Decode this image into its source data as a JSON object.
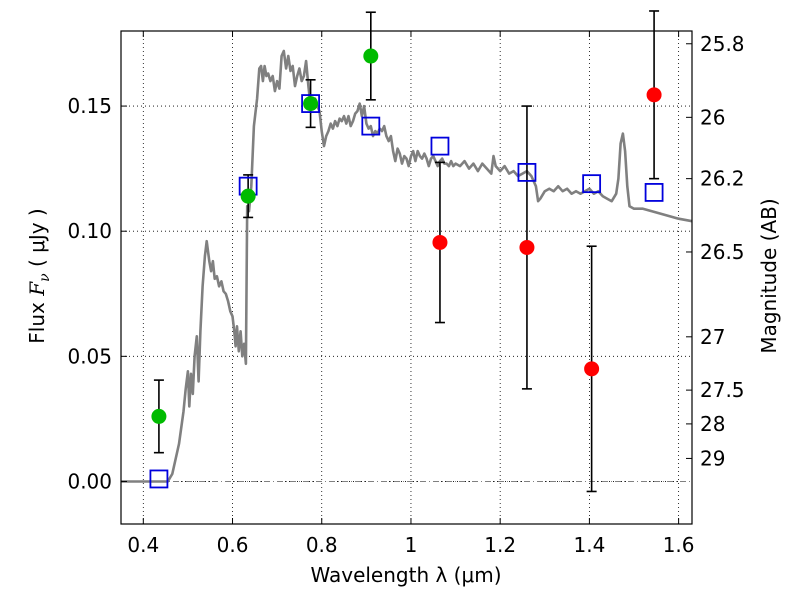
{
  "chart_data": {
    "type": "scatter",
    "xlabel": "Wavelength  λ (μm)",
    "ylabel_left": {
      "prefix": "Flux  ",
      "symbol": "F",
      "sub": "ν",
      "unit": "  ( μJy )"
    },
    "ylabel_right": "Magnitude (AB)",
    "xlim": [
      0.35,
      1.63
    ],
    "ylim": [
      -0.017,
      0.18
    ],
    "grid": true,
    "x_ticks": [
      0.4,
      0.6,
      0.8,
      1.0,
      1.2,
      1.4,
      1.6
    ],
    "x_tick_labels": [
      "0.4",
      "0.6",
      "0.8",
      "1",
      "1.2",
      "1.4",
      "1.6"
    ],
    "y_ticks": [
      0.0,
      0.05,
      0.1,
      0.15
    ],
    "y_tick_labels": [
      "0.00",
      "0.05",
      "0.10",
      "0.15"
    ],
    "right_ticks": [
      {
        "label": "25.8",
        "flux": 0.1749
      },
      {
        "label": "26",
        "flux": 0.1455
      },
      {
        "label": "26.2",
        "flux": 0.121
      },
      {
        "label": "26.5",
        "flux": 0.0917
      },
      {
        "label": "27",
        "flux": 0.0578
      },
      {
        "label": "27.5",
        "flux": 0.0365
      },
      {
        "label": "28",
        "flux": 0.023
      },
      {
        "label": "29",
        "flux": 0.0092
      }
    ],
    "series": [
      {
        "kind": "line",
        "color": "#808080",
        "points": [
          [
            0.35,
            0.0
          ],
          [
            0.4,
            0.0
          ],
          [
            0.44,
            0.0
          ],
          [
            0.455,
            0.0
          ],
          [
            0.465,
            0.003
          ],
          [
            0.48,
            0.015
          ],
          [
            0.49,
            0.028
          ],
          [
            0.495,
            0.037
          ],
          [
            0.5,
            0.044
          ],
          [
            0.503,
            0.03
          ],
          [
            0.507,
            0.043
          ],
          [
            0.511,
            0.035
          ],
          [
            0.515,
            0.05
          ],
          [
            0.52,
            0.058
          ],
          [
            0.524,
            0.04
          ],
          [
            0.528,
            0.06
          ],
          [
            0.533,
            0.078
          ],
          [
            0.538,
            0.09
          ],
          [
            0.542,
            0.096
          ],
          [
            0.548,
            0.088
          ],
          [
            0.552,
            0.084
          ],
          [
            0.556,
            0.088
          ],
          [
            0.56,
            0.081
          ],
          [
            0.565,
            0.082
          ],
          [
            0.57,
            0.078
          ],
          [
            0.575,
            0.08
          ],
          [
            0.58,
            0.076
          ],
          [
            0.585,
            0.075
          ],
          [
            0.59,
            0.072
          ],
          [
            0.595,
            0.068
          ],
          [
            0.6,
            0.066
          ],
          [
            0.604,
            0.06
          ],
          [
            0.607,
            0.054
          ],
          [
            0.61,
            0.062
          ],
          [
            0.614,
            0.052
          ],
          [
            0.618,
            0.06
          ],
          [
            0.622,
            0.05
          ],
          [
            0.626,
            0.055
          ],
          [
            0.63,
            0.047
          ],
          [
            0.633,
            0.11
          ],
          [
            0.637,
            0.108
          ],
          [
            0.642,
            0.118
          ],
          [
            0.648,
            0.142
          ],
          [
            0.655,
            0.153
          ],
          [
            0.66,
            0.165
          ],
          [
            0.664,
            0.166
          ],
          [
            0.668,
            0.16
          ],
          [
            0.672,
            0.166
          ],
          [
            0.676,
            0.162
          ],
          [
            0.68,
            0.163
          ],
          [
            0.685,
            0.16
          ],
          [
            0.69,
            0.162
          ],
          [
            0.695,
            0.156
          ],
          [
            0.7,
            0.16
          ],
          [
            0.705,
            0.157
          ],
          [
            0.71,
            0.17
          ],
          [
            0.715,
            0.172
          ],
          [
            0.72,
            0.165
          ],
          [
            0.725,
            0.17
          ],
          [
            0.73,
            0.164
          ],
          [
            0.735,
            0.166
          ],
          [
            0.74,
            0.158
          ],
          [
            0.745,
            0.162
          ],
          [
            0.75,
            0.165
          ],
          [
            0.755,
            0.16
          ],
          [
            0.76,
            0.162
          ],
          [
            0.765,
            0.168
          ],
          [
            0.77,
            0.158
          ],
          [
            0.775,
            0.15
          ],
          [
            0.78,
            0.152
          ],
          [
            0.785,
            0.153
          ],
          [
            0.79,
            0.15
          ],
          [
            0.795,
            0.148
          ],
          [
            0.8,
            0.14
          ],
          [
            0.805,
            0.134
          ],
          [
            0.81,
            0.138
          ],
          [
            0.815,
            0.14
          ],
          [
            0.82,
            0.143
          ],
          [
            0.825,
            0.141
          ],
          [
            0.83,
            0.144
          ],
          [
            0.835,
            0.142
          ],
          [
            0.84,
            0.145
          ],
          [
            0.845,
            0.144
          ],
          [
            0.85,
            0.146
          ],
          [
            0.855,
            0.143
          ],
          [
            0.86,
            0.146
          ],
          [
            0.865,
            0.142
          ],
          [
            0.87,
            0.144
          ],
          [
            0.875,
            0.147
          ],
          [
            0.88,
            0.148
          ],
          [
            0.885,
            0.151
          ],
          [
            0.89,
            0.146
          ],
          [
            0.895,
            0.15
          ],
          [
            0.9,
            0.143
          ],
          [
            0.905,
            0.141
          ],
          [
            0.91,
            0.142
          ],
          [
            0.915,
            0.138
          ],
          [
            0.92,
            0.14
          ],
          [
            0.925,
            0.139
          ],
          [
            0.93,
            0.141
          ],
          [
            0.935,
            0.14
          ],
          [
            0.94,
            0.142
          ],
          [
            0.945,
            0.138
          ],
          [
            0.95,
            0.136
          ],
          [
            0.955,
            0.138
          ],
          [
            0.96,
            0.132
          ],
          [
            0.965,
            0.128
          ],
          [
            0.97,
            0.133
          ],
          [
            0.975,
            0.131
          ],
          [
            0.98,
            0.127
          ],
          [
            0.985,
            0.13
          ],
          [
            0.99,
            0.129
          ],
          [
            0.995,
            0.126
          ],
          [
            1.0,
            0.13
          ],
          [
            1.005,
            0.132
          ],
          [
            1.01,
            0.128
          ],
          [
            1.015,
            0.132
          ],
          [
            1.02,
            0.13
          ],
          [
            1.025,
            0.129
          ],
          [
            1.03,
            0.131
          ],
          [
            1.035,
            0.129
          ],
          [
            1.04,
            0.126
          ],
          [
            1.045,
            0.129
          ],
          [
            1.05,
            0.13
          ],
          [
            1.055,
            0.128
          ],
          [
            1.06,
            0.126
          ],
          [
            1.065,
            0.128
          ],
          [
            1.07,
            0.129
          ],
          [
            1.075,
            0.127
          ],
          [
            1.08,
            0.127
          ],
          [
            1.085,
            0.126
          ],
          [
            1.09,
            0.128
          ],
          [
            1.095,
            0.126
          ],
          [
            1.1,
            0.127
          ],
          [
            1.11,
            0.126
          ],
          [
            1.12,
            0.128
          ],
          [
            1.13,
            0.125
          ],
          [
            1.14,
            0.127
          ],
          [
            1.15,
            0.124
          ],
          [
            1.16,
            0.127
          ],
          [
            1.17,
            0.125
          ],
          [
            1.18,
            0.123
          ],
          [
            1.185,
            0.13
          ],
          [
            1.19,
            0.126
          ],
          [
            1.2,
            0.124
          ],
          [
            1.21,
            0.126
          ],
          [
            1.22,
            0.123
          ],
          [
            1.23,
            0.124
          ],
          [
            1.24,
            0.122
          ],
          [
            1.25,
            0.123
          ],
          [
            1.26,
            0.124
          ],
          [
            1.27,
            0.122
          ],
          [
            1.28,
            0.118
          ],
          [
            1.285,
            0.112
          ],
          [
            1.29,
            0.113
          ],
          [
            1.3,
            0.116
          ],
          [
            1.31,
            0.117
          ],
          [
            1.32,
            0.116
          ],
          [
            1.33,
            0.118
          ],
          [
            1.34,
            0.116
          ],
          [
            1.35,
            0.117
          ],
          [
            1.36,
            0.115
          ],
          [
            1.37,
            0.116
          ],
          [
            1.38,
            0.115
          ],
          [
            1.39,
            0.116
          ],
          [
            1.4,
            0.117
          ],
          [
            1.41,
            0.115
          ],
          [
            1.42,
            0.116
          ],
          [
            1.43,
            0.114
          ],
          [
            1.44,
            0.113
          ],
          [
            1.45,
            0.112
          ],
          [
            1.46,
            0.115
          ],
          [
            1.465,
            0.121
          ],
          [
            1.47,
            0.135
          ],
          [
            1.475,
            0.139
          ],
          [
            1.48,
            0.132
          ],
          [
            1.485,
            0.118
          ],
          [
            1.49,
            0.11
          ],
          [
            1.5,
            0.109
          ],
          [
            1.52,
            0.109
          ],
          [
            1.54,
            0.108
          ],
          [
            1.56,
            0.107
          ],
          [
            1.58,
            0.106
          ],
          [
            1.6,
            0.105
          ],
          [
            1.63,
            0.104
          ]
        ]
      },
      {
        "kind": "errorbar",
        "marker": "circle",
        "color": "#00bb00",
        "points": [
          {
            "x": 0.435,
            "y": 0.026,
            "err": 0.0145
          },
          {
            "x": 0.635,
            "y": 0.114,
            "err": 0.0085
          },
          {
            "x": 0.775,
            "y": 0.151,
            "err": 0.0095
          },
          {
            "x": 0.91,
            "y": 0.17,
            "err": 0.0175
          }
        ]
      },
      {
        "kind": "errorbar",
        "marker": "circle",
        "color": "#ff0000",
        "points": [
          {
            "x": 1.065,
            "y": 0.0955,
            "err": 0.032
          },
          {
            "x": 1.26,
            "y": 0.0935,
            "err": 0.0565
          },
          {
            "x": 1.405,
            "y": 0.045,
            "err": 0.049
          },
          {
            "x": 1.545,
            "y": 0.1545,
            "err": 0.0335
          }
        ]
      },
      {
        "kind": "scatter",
        "marker": "square-open",
        "color": "#0000dd",
        "points": [
          [
            0.435,
            0.001
          ],
          [
            0.635,
            0.118
          ],
          [
            0.775,
            0.151
          ],
          [
            0.91,
            0.142
          ],
          [
            1.065,
            0.134
          ],
          [
            1.26,
            0.1235
          ],
          [
            1.405,
            0.119
          ],
          [
            1.545,
            0.1155
          ]
        ]
      }
    ],
    "zero_line": {
      "y": 0.0,
      "style": "dashdot",
      "color": "#808080"
    }
  }
}
